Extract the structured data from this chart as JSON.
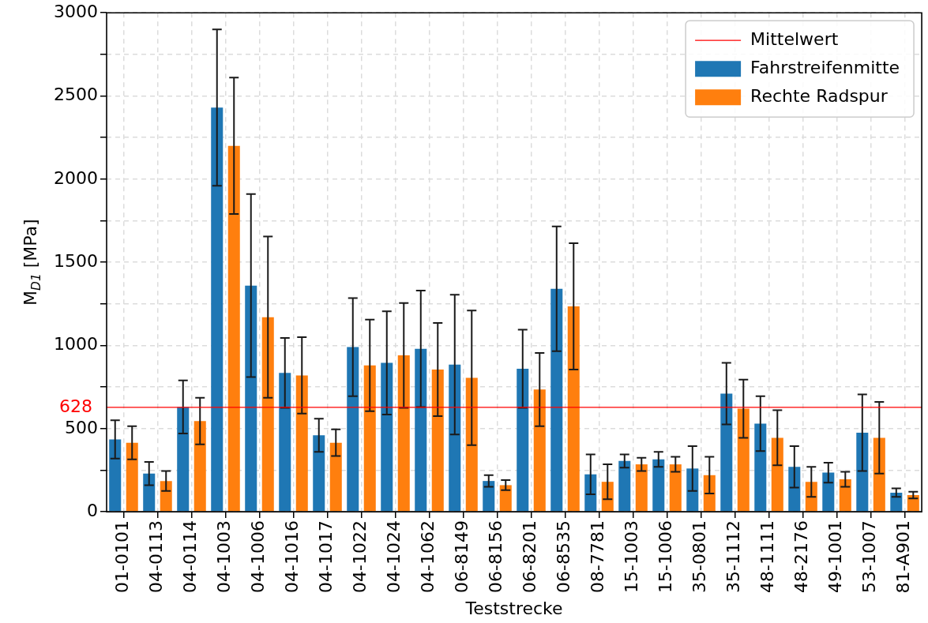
{
  "chart_data": {
    "type": "bar",
    "xlabel": "Teststrecke",
    "ylabel": "M$_{D1}$ [MPa]",
    "categories": [
      "01-0101",
      "04-0113",
      "04-0114",
      "04-1003",
      "04-1006",
      "04-1016",
      "04-1017",
      "04-1022",
      "04-1024",
      "04-1062",
      "06-8149",
      "06-8156",
      "06-8201",
      "06-8535",
      "08-7781",
      "15-1003",
      "15-1006",
      "35-0801",
      "35-1112",
      "48-1111",
      "48-2176",
      "49-1001",
      "53-1007",
      "81-A901"
    ],
    "series": [
      {
        "name": "Fahrstreifenmitte",
        "color": "#1f77b4",
        "values": [
          435,
          230,
          630,
          2430,
          1360,
          835,
          460,
          990,
          895,
          980,
          885,
          185,
          860,
          1340,
          225,
          305,
          315,
          260,
          710,
          530,
          270,
          235,
          475,
          115
        ],
        "errors": [
          115,
          70,
          160,
          470,
          550,
          210,
          100,
          295,
          310,
          350,
          420,
          35,
          235,
          375,
          120,
          40,
          45,
          135,
          185,
          165,
          125,
          60,
          230,
          25
        ]
      },
      {
        "name": "Rechte Radspur",
        "color": "#ff7f0e",
        "values": [
          415,
          185,
          545,
          2200,
          1170,
          820,
          415,
          880,
          940,
          855,
          805,
          160,
          735,
          1235,
          180,
          285,
          285,
          220,
          620,
          445,
          180,
          195,
          445,
          100
        ],
        "errors": [
          100,
          60,
          140,
          410,
          485,
          230,
          80,
          275,
          315,
          280,
          405,
          30,
          220,
          380,
          105,
          40,
          45,
          110,
          175,
          165,
          90,
          45,
          215,
          20
        ]
      }
    ],
    "ylim": [
      0,
      3000
    ],
    "yticks": [
      0,
      {
        "value": 250,
        "label": null
      },
      500,
      {
        "value": 750,
        "label": null
      },
      1000,
      {
        "value": 1250,
        "label": null
      },
      1500,
      {
        "value": 1750,
        "label": null
      },
      2000,
      {
        "value": 2250,
        "label": null
      },
      2500,
      {
        "value": 2750,
        "label": null
      },
      3000
    ],
    "ref_lines": [
      {
        "axis": "y",
        "value": 628,
        "label": "Mittelwert",
        "color": "#ff0000"
      }
    ],
    "annotations": [
      "628"
    ],
    "grid": true,
    "legend": "top right"
  }
}
